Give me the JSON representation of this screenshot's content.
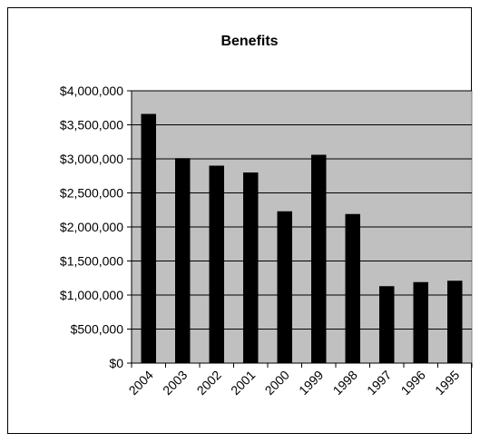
{
  "chart_data": {
    "type": "bar",
    "title": "Benefits",
    "xlabel": "",
    "ylabel": "",
    "categories": [
      "2004",
      "2003",
      "2002",
      "2001",
      "2000",
      "1999",
      "1998",
      "1997",
      "1996",
      "1995"
    ],
    "values": [
      3660000,
      3010000,
      2900000,
      2800000,
      2230000,
      3060000,
      2190000,
      1130000,
      1190000,
      1210000
    ],
    "ylim": [
      0,
      4000000
    ],
    "yticks": [
      0,
      500000,
      1000000,
      1500000,
      2000000,
      2500000,
      3000000,
      3500000,
      4000000
    ],
    "ytick_labels": [
      "$0",
      "$500,000",
      "$1,000,000",
      "$1,500,000",
      "$2,000,000",
      "$2,500,000",
      "$3,000,000",
      "$3,500,000",
      "$4,000,000"
    ],
    "grid": true,
    "legend": "none",
    "colors": {
      "plot_background": "#c0c0c0",
      "bar": "#000000",
      "gridline": "#000000"
    }
  }
}
